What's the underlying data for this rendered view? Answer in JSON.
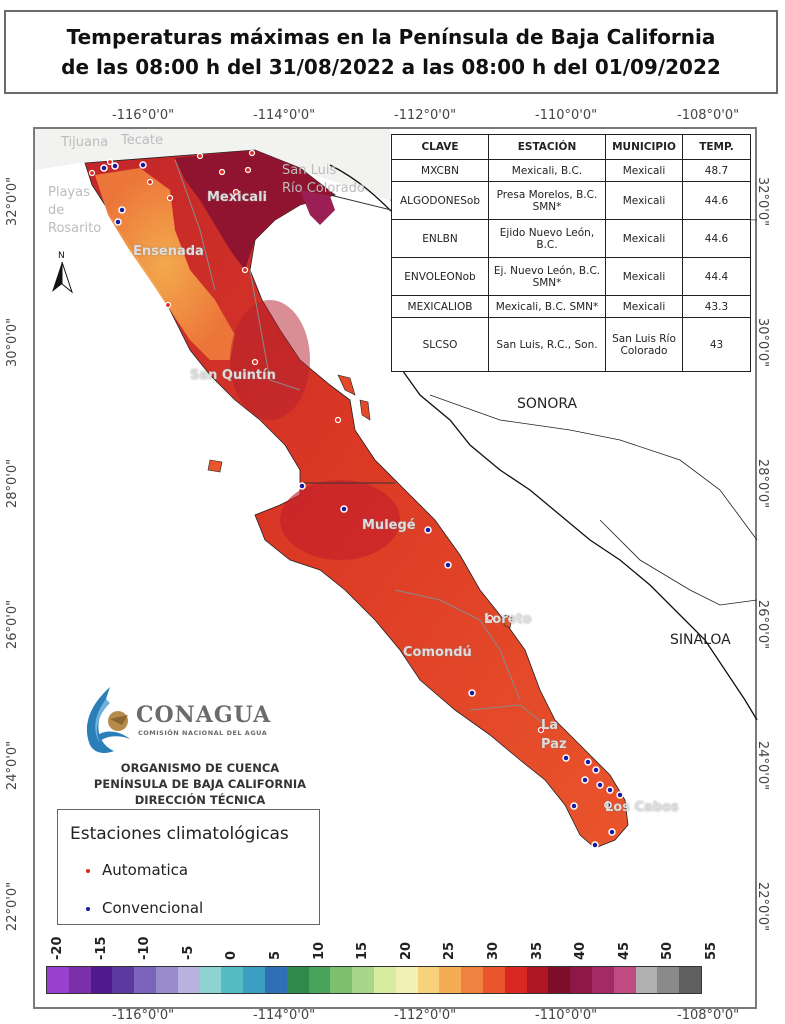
{
  "title": {
    "line1": "Temperaturas máximas en la Península de Baja California",
    "line2": "de las 08:00 h del 31/08/2022 a las 08:00 h del 01/09/2022"
  },
  "coords": {
    "top": [
      "-116°0'0\"",
      "-114°0'0\"",
      "-112°0'0\"",
      "-110°0'0\"",
      "-108°0'0\""
    ],
    "bottom": [
      "-116°0'0\"",
      "-114°0'0\"",
      "-112°0'0\"",
      "-110°0'0\"",
      "-108°0'0\""
    ],
    "left": [
      "32°0'0\"",
      "30°0'0\"",
      "28°0'0\"",
      "26°0'0\"",
      "24°0'0\"",
      "22°0'0\""
    ],
    "right": [
      "32°0'0\"",
      "30°0'0\"",
      "28°0'0\"",
      "26°0'0\"",
      "24°0'0\"",
      "22°0'0\""
    ]
  },
  "places": {
    "tijuana": "Tijuana",
    "tecate": "Tecate",
    "playas1": "Playas",
    "playas2": "de",
    "playas3": "Rosarito",
    "mexicali": "Mexicali",
    "sanluis1": "San Luis",
    "sanluis2": "Río Colorado",
    "ensenada": "Ensenada",
    "sanquintin": "San Quintín",
    "mulege": "Mulegé",
    "loreto": "Loreto",
    "comondu": "Comondú",
    "lapaz1": "La",
    "lapaz2": "Paz",
    "loscabos": "Los Cabos"
  },
  "states": {
    "sonora": "SONORA",
    "sinaloa": "SINALOA"
  },
  "table": {
    "headers": [
      "CLAVE",
      "ESTACIÓN",
      "MUNICIPIO",
      "TEMP."
    ],
    "rows": [
      {
        "clave": "MXCBN",
        "estacion": "Mexicali, B.C.",
        "municipio": "Mexicali",
        "temp": "48.7"
      },
      {
        "clave": "ALGODONESob",
        "estacion": "Presa Morelos, B.C. SMN*",
        "municipio": "Mexicali",
        "temp": "44.6"
      },
      {
        "clave": "ENLBN",
        "estacion": "Ejido Nuevo León, B.C.",
        "municipio": "Mexicali",
        "temp": "44.6"
      },
      {
        "clave": "ENVOLEONob",
        "estacion": "Ej. Nuevo León, B.C. SMN*",
        "municipio": "Mexicali",
        "temp": "44.4"
      },
      {
        "clave": "MEXICALIOB",
        "estacion": "Mexicali, B.C. SMN*",
        "municipio": "Mexicali",
        "temp": "43.3"
      },
      {
        "clave": "SLCSO",
        "estacion": "San Luis, R.C., Son.",
        "municipio": "San Luis Río Colorado",
        "temp": "43"
      }
    ]
  },
  "logo": {
    "name": "CONAGUA",
    "subtitle": "COMISIÓN NACIONAL DEL AGUA"
  },
  "organization": {
    "line1": "ORGANISMO DE CUENCA",
    "line2": "PENÍNSULA DE BAJA CALIFORNIA",
    "line3": "DIRECCIÓN TÉCNICA"
  },
  "legend": {
    "title": "Estaciones climatológicas",
    "automatica": "Automatica",
    "convencional": "Convencional",
    "automatica_color": "#e0281c",
    "convencional_color": "#1a1aa0"
  },
  "scale": {
    "labels": [
      "-20",
      "-15",
      "-10",
      "-5",
      "0",
      "5",
      "10",
      "15",
      "20",
      "25",
      "30",
      "35",
      "40",
      "45",
      "50",
      "55"
    ],
    "colors": [
      "#9b3fcf",
      "#7b2fa8",
      "#4f1a8e",
      "#5b3aa0",
      "#7a63b8",
      "#9a8ccb",
      "#b9b2de",
      "#8fd3d0",
      "#56bcc4",
      "#3a9fc2",
      "#2e6fb5",
      "#2e8a4a",
      "#4aa35a",
      "#7cc06f",
      "#a8d68b",
      "#d6ec9e",
      "#f2f0b4",
      "#f7d27a",
      "#f4ad55",
      "#ef8240",
      "#e9552c",
      "#d9281f",
      "#b01522",
      "#7e0d2a",
      "#8e1748",
      "#a32a63",
      "#c04b83",
      "#b0b0b0",
      "#8a8a8a",
      "#5f5f5f"
    ]
  }
}
